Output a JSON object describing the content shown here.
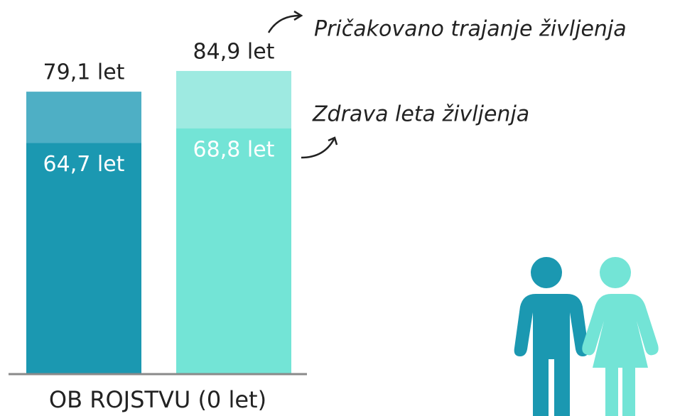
{
  "chart_data": {
    "type": "bar",
    "categories": [
      null,
      null
    ],
    "xlabel": "OB ROJSTVU (0 let)",
    "series": [
      {
        "name": "Pričakovano trajanje življenja",
        "colors": [
          "#4eafc5",
          "#9eeae1"
        ],
        "values": [
          79.1,
          84.9
        ],
        "value_labels": [
          "79,1 let",
          "84,9 let"
        ]
      },
      {
        "name": "Zdrava leta življenja",
        "colors": [
          "#1b98b1",
          "#73e4d6"
        ],
        "values": [
          64.7,
          68.8
        ],
        "value_labels": [
          "64,7 let",
          "68,8 let"
        ]
      }
    ]
  }
}
